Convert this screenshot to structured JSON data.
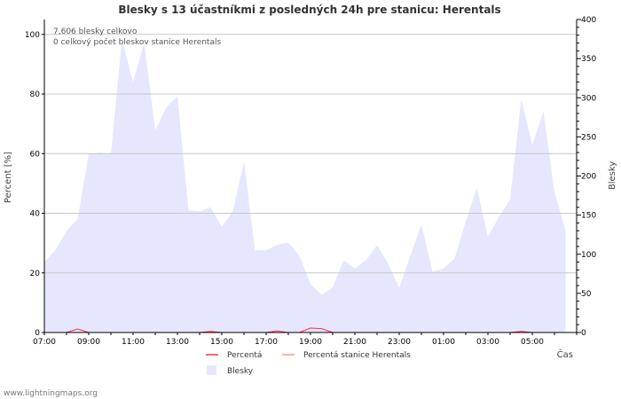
{
  "chart_data": {
    "type": "area",
    "title": "Blesky s 13 účastníkmi z posledných 24h pre stanicu: Herentals",
    "xlabel": "Čas",
    "ylabel_left": "Percent   [%]",
    "ylabel_right": "Blesky",
    "ylim_left": [
      0,
      105
    ],
    "ylim_right": [
      0,
      400
    ],
    "x_ticks": [
      "07:00",
      "09:00",
      "11:00",
      "13:00",
      "15:00",
      "17:00",
      "19:00",
      "21:00",
      "23:00",
      "01:00",
      "03:00",
      "05:00"
    ],
    "y_ticks_left": [
      0,
      20,
      40,
      60,
      80,
      100
    ],
    "y_ticks_right": [
      0,
      50,
      100,
      150,
      200,
      250,
      300,
      350,
      400
    ],
    "annotations": [
      "7,606 blesky celkovo",
      "0 celkový počet bleskov stanice Herentals"
    ],
    "grid": true,
    "x": [
      0,
      0.5,
      1,
      1.5,
      2,
      2.5,
      3,
      3.5,
      4,
      4.5,
      5,
      5.5,
      6,
      6.5,
      7,
      7.5,
      8,
      8.5,
      9,
      9.5,
      10,
      10.5,
      11,
      11.5,
      12,
      12.5,
      13,
      13.5,
      14,
      14.5,
      15,
      15.5,
      16,
      16.5,
      17,
      17.5,
      18,
      18.5,
      19,
      19.5,
      20,
      20.5,
      21,
      21.5,
      22,
      22.5,
      23,
      23.5
    ],
    "series": [
      {
        "name": "Blesky",
        "axis": "right",
        "color": "#e6e6ff",
        "values": [
          90,
          105,
          130,
          145,
          228,
          230,
          228,
          375,
          320,
          370,
          258,
          288,
          302,
          156,
          155,
          160,
          135,
          155,
          218,
          105,
          105,
          112,
          115,
          98,
          62,
          48,
          58,
          92,
          82,
          92,
          112,
          88,
          57,
          98,
          138,
          78,
          82,
          95,
          142,
          185,
          122,
          148,
          170,
          298,
          240,
          282,
          180,
          130
        ]
      },
      {
        "name": "Percentá",
        "axis": "left",
        "color": "#ff3333",
        "values": [
          0,
          0,
          0,
          1.2,
          0,
          0,
          0,
          0,
          0,
          0,
          0,
          0,
          0,
          0,
          0,
          0.4,
          0,
          0,
          0,
          0,
          0,
          0.5,
          0,
          0,
          1.5,
          1.3,
          0,
          0,
          0,
          0,
          0,
          0,
          0,
          0,
          0,
          0,
          0,
          0,
          0,
          0,
          0,
          0,
          0,
          0.4,
          0,
          0,
          0,
          0
        ]
      },
      {
        "name": "Percentá stanice Herentals",
        "axis": "left",
        "color": "#ff9999",
        "values": [
          0,
          0,
          0,
          0,
          0,
          0,
          0,
          0,
          0,
          0,
          0,
          0,
          0,
          0,
          0,
          0,
          0,
          0,
          0,
          0,
          0,
          0,
          0,
          0,
          0,
          0,
          0,
          0,
          0,
          0,
          0,
          0,
          0,
          0,
          0,
          0,
          0,
          0,
          0,
          0,
          0,
          0,
          0,
          0,
          0,
          0,
          0,
          0
        ]
      }
    ]
  },
  "legend": {
    "percenta": "Percentá",
    "percenta_stanice": "Percentá stanice Herentals",
    "blesky": "Blesky"
  },
  "credit": "www.lightningmaps.org",
  "colors": {
    "area": "#e6e6ff",
    "percent": "#ff3333",
    "station": "#ff9999",
    "grid": "#c8c8c8"
  }
}
